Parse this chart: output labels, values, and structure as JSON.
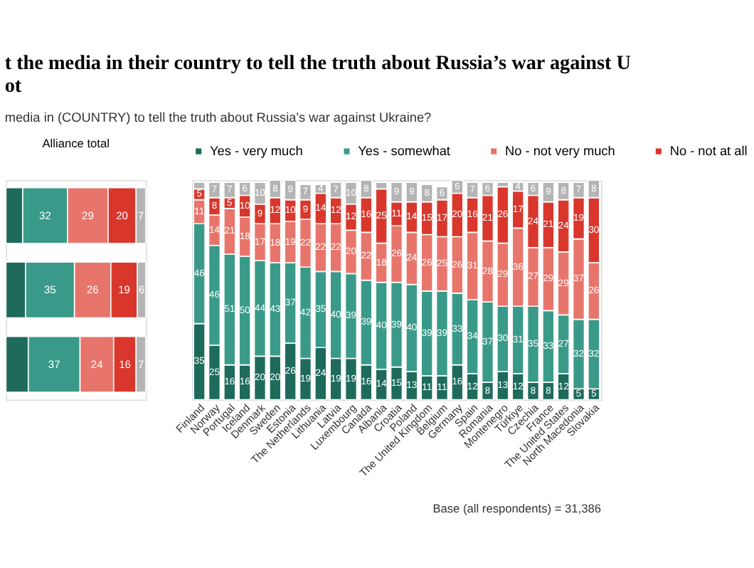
{
  "chart_data": [
    {
      "type": "bar",
      "title": "Alliance total",
      "orientation": "horizontal",
      "stacked": true,
      "tick_labels": false,
      "legend": false,
      "categories": [
        null,
        null,
        null
      ],
      "series": [
        {
          "color": "#1e6b5c",
          "values": [
            12,
            14,
            16
          ],
          "value_labels": [
            null,
            null,
            null
          ]
        },
        {
          "color": "#3a9a89",
          "values": [
            32,
            35,
            37
          ],
          "value_labels": [
            "32",
            "35",
            "37"
          ]
        },
        {
          "color": "#e8756b",
          "values": [
            29,
            26,
            24
          ],
          "value_labels": [
            "29",
            "26",
            "24"
          ]
        },
        {
          "color": "#d9372c",
          "values": [
            20,
            19,
            16
          ],
          "value_labels": [
            "20",
            "19",
            "16"
          ]
        },
        {
          "color": "#b4b4b4",
          "values": [
            7,
            6,
            7
          ],
          "value_labels": [
            "7",
            "6",
            "7"
          ]
        }
      ]
    },
    {
      "type": "bar",
      "title": "t the media in their country to tell the truth about Russia’s war against U\not",
      "subtitle": "media in (COUNTRY) to tell the truth about Russia's war against Ukraine?",
      "stacked": true,
      "tick_labels": "x",
      "legend": "top",
      "data_labels": true,
      "annotations": [
        "Base (all respondents) = 31,386"
      ],
      "categories": [
        "Finland",
        "Norway",
        "Portugal",
        "Iceland",
        "Denmark",
        "Sweden",
        "Estonia",
        "The Netherlands",
        "Lithuania",
        "Latvia",
        "Luxembourg",
        "Canada",
        "Albania",
        "Croatia",
        "Poland",
        "The United Kingdom",
        "Belgium",
        "Germany",
        "Spain",
        "Romania",
        "Montenegro",
        "Türkiye",
        "Czechia",
        "France",
        "The United States",
        "North Macedonia",
        "Slovakia"
      ],
      "series": [
        {
          "name": "Yes - very much",
          "color": "#1e6b5c",
          "values": [
            35,
            25,
            16,
            16,
            20,
            20,
            26,
            19,
            24,
            19,
            19,
            16,
            14,
            15,
            13,
            11,
            11,
            16,
            12,
            8,
            13,
            12,
            8,
            8,
            12,
            5,
            5
          ]
        },
        {
          "name": "Yes - somewhat",
          "color": "#3a9a89",
          "values": [
            46,
            46,
            51,
            50,
            44,
            43,
            37,
            42,
            35,
            40,
            39,
            39,
            40,
            39,
            40,
            39,
            39,
            33,
            34,
            37,
            30,
            31,
            35,
            33,
            27,
            32,
            32
          ]
        },
        {
          "name": "No - not very much",
          "color": "#e8756b",
          "values": [
            11,
            14,
            21,
            18,
            17,
            18,
            19,
            22,
            22,
            22,
            20,
            22,
            18,
            26,
            24,
            26,
            25,
            26,
            31,
            28,
            29,
            36,
            27,
            29,
            29,
            37,
            26
          ]
        },
        {
          "name": "No - not at all",
          "color": "#d9372c",
          "values": [
            5,
            8,
            5,
            10,
            9,
            12,
            10,
            9,
            14,
            12,
            12,
            16,
            25,
            11,
            14,
            15,
            17,
            20,
            16,
            21,
            26,
            17,
            24,
            21,
            24,
            19,
            30
          ]
        },
        {
          "color": "#b4b4b4",
          "values": [
            3,
            7,
            7,
            6,
            10,
            8,
            9,
            7,
            4,
            7,
            10,
            8,
            3,
            9,
            9,
            8,
            6,
            6,
            7,
            6,
            2,
            4,
            6,
            9,
            8,
            7,
            8
          ],
          "value_labels": [
            null,
            "7",
            "7",
            "6",
            "10",
            "8",
            "9",
            "7",
            "4",
            "7",
            "10",
            "8",
            null,
            "9",
            "9",
            "8",
            "6",
            "6",
            "7",
            "6",
            null,
            "4",
            "6",
            "9",
            "8",
            "7",
            "8"
          ]
        }
      ]
    }
  ]
}
